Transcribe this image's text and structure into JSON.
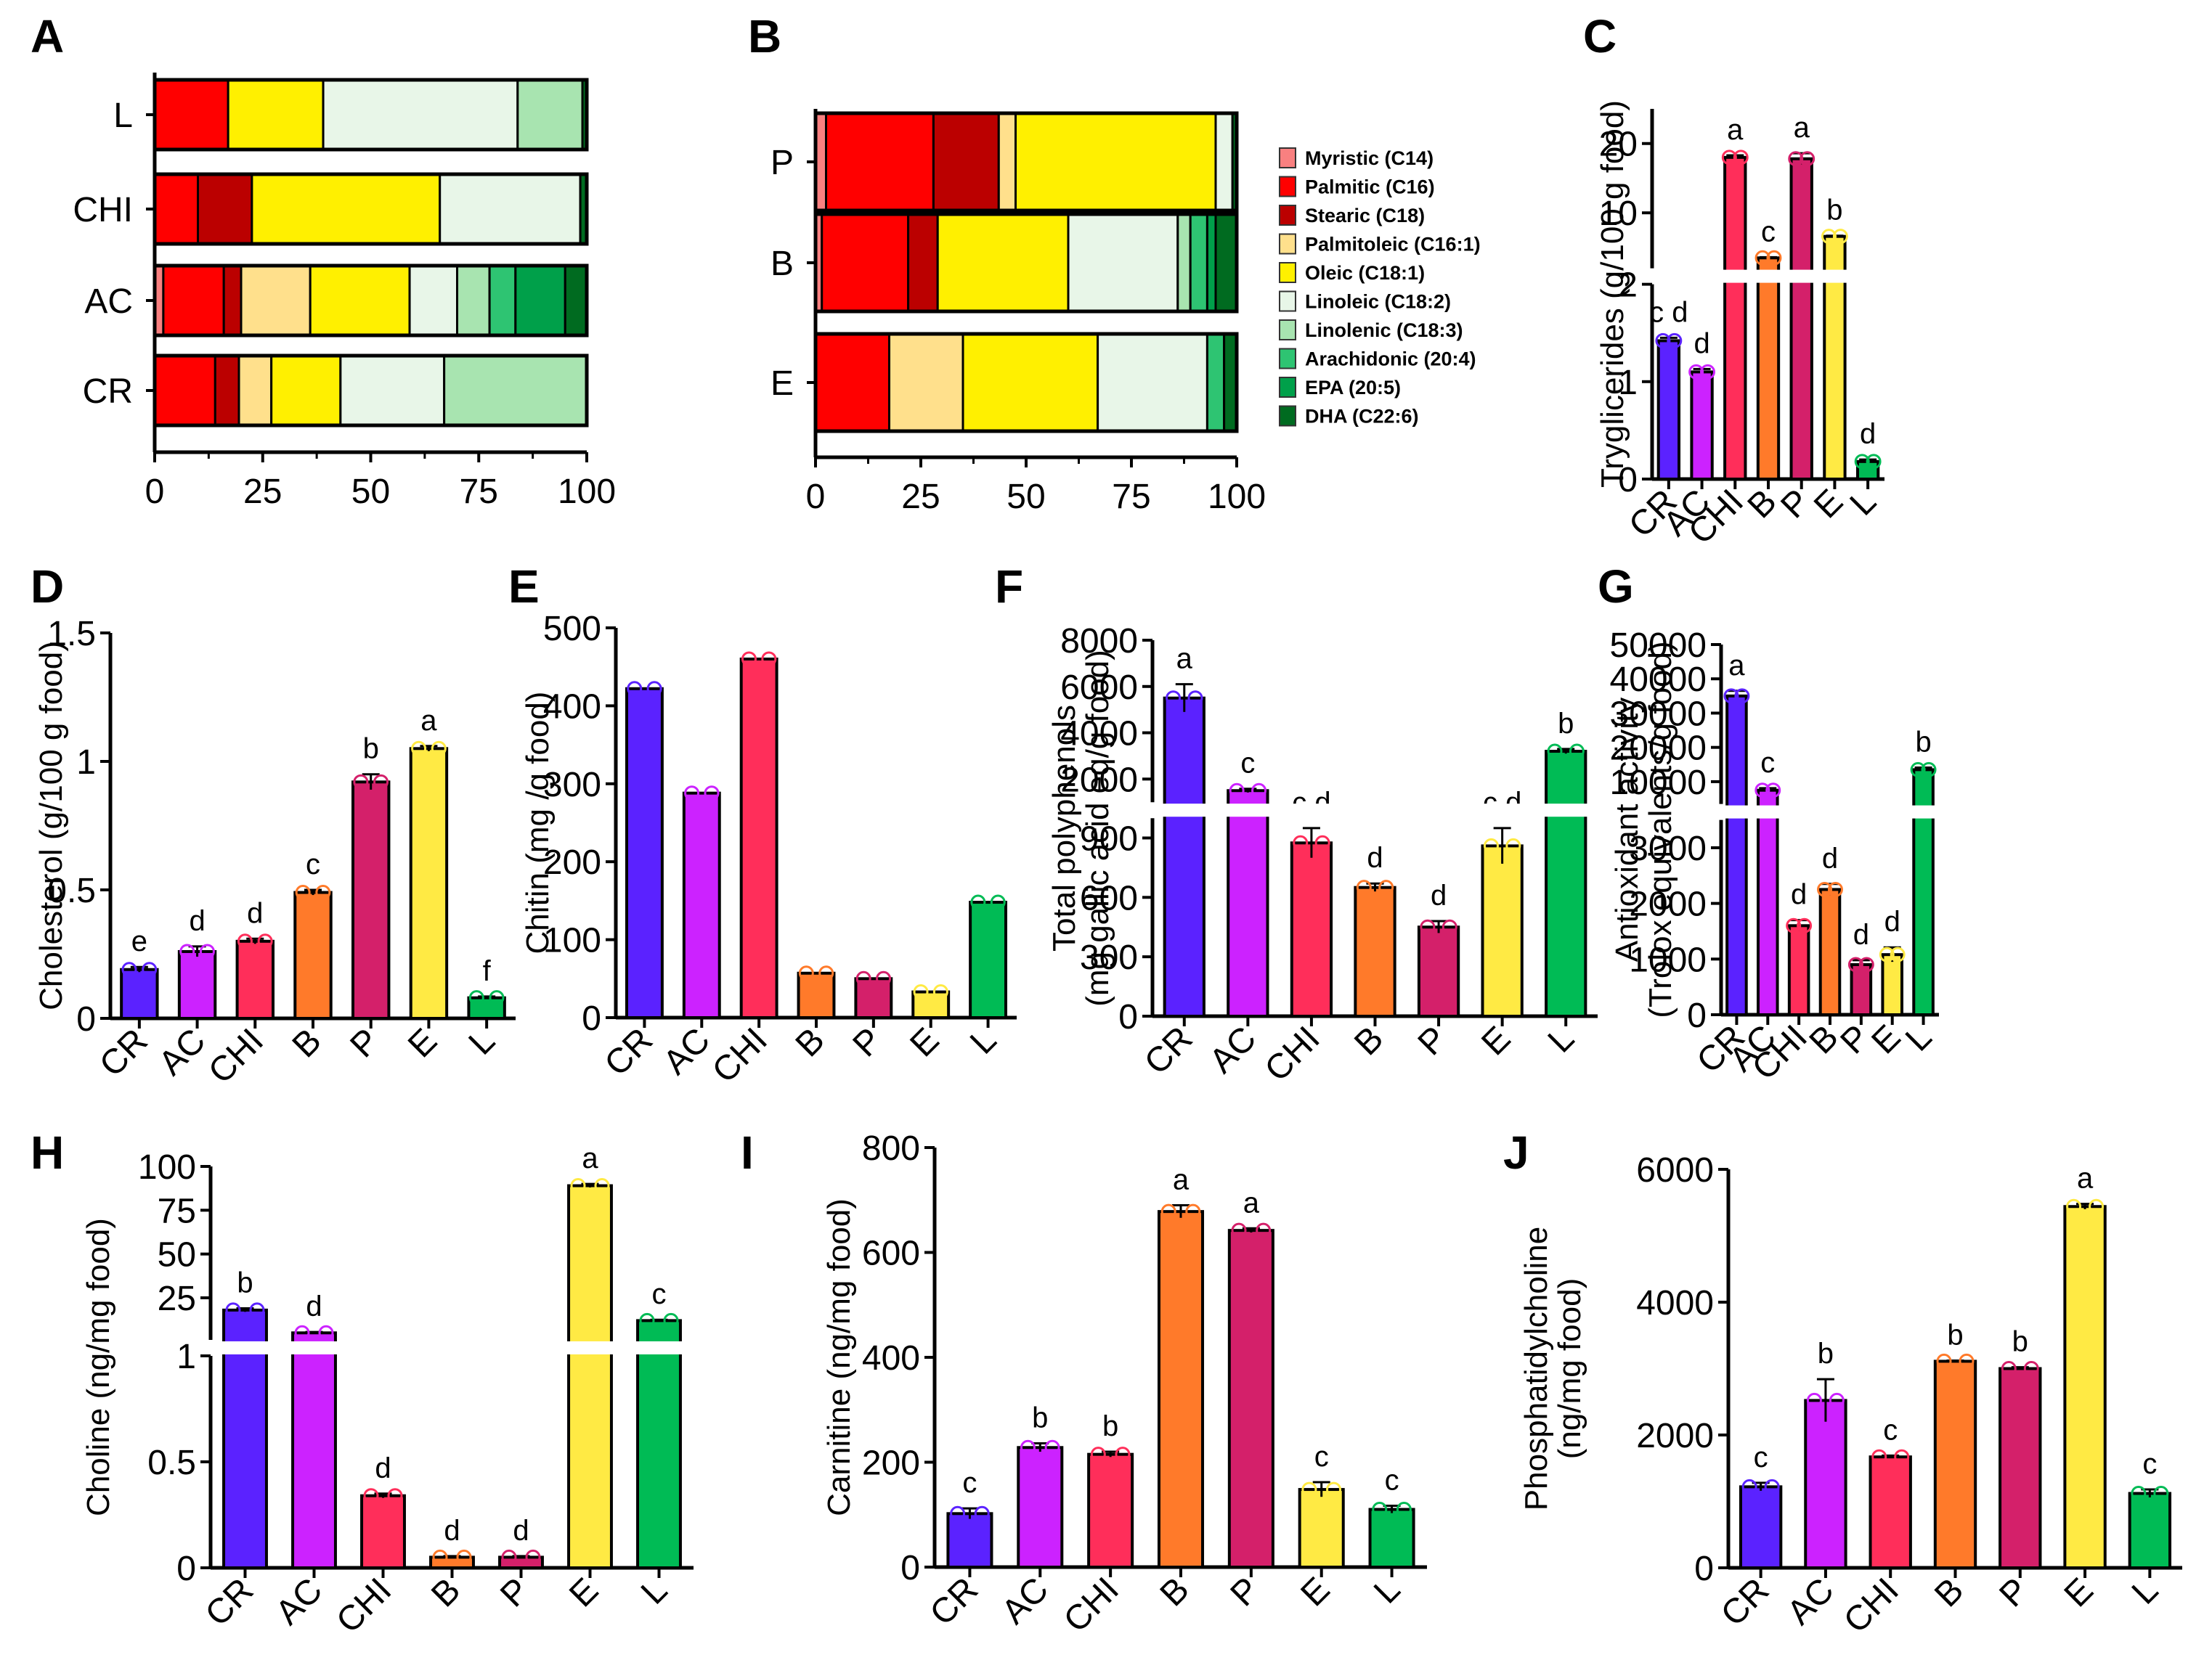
{
  "fatty_acids": [
    {
      "name": "Myristic (C14)",
      "color": "#F98080"
    },
    {
      "name": "Palmitic (C16)",
      "color": "#FF0000"
    },
    {
      "name": "Stearic (C18)",
      "color": "#BB0000"
    },
    {
      "name": "Palmitoleic (C16:1)",
      "color": "#FFE08C"
    },
    {
      "name": "Oleic (C18:1)",
      "color": "#FFF000"
    },
    {
      "name": "Linoleic (C18:2)",
      "color": "#E8F6E8"
    },
    {
      "name": "Linolenic (C18:3)",
      "color": "#A8E4B0"
    },
    {
      "name": "Arachidonic (20:4)",
      "color": "#2EC472"
    },
    {
      "name": "EPA (20:5)",
      "color": "#00A04A"
    },
    {
      "name": "DHA (C22:6)",
      "color": "#006B20"
    }
  ],
  "group_colors": {
    "CR": "#5B22FF",
    "AC": "#CC22FF",
    "CHI": "#FF2E5A",
    "B": "#FF7A2A",
    "P": "#D4206A",
    "E": "#FFEA44",
    "L": "#00BB55"
  },
  "chart_data": [
    {
      "panel": "A",
      "type": "bar",
      "orientation": "horizontal",
      "stacked": true,
      "categories": [
        "L",
        "CHI",
        "AC",
        "CR"
      ],
      "xlim": [
        0,
        100
      ],
      "xticks": [
        0,
        25,
        50,
        75,
        100
      ],
      "series": [
        {
          "name": "Myristic (C14)",
          "values": [
            0,
            0,
            2,
            0
          ]
        },
        {
          "name": "Palmitic (C16)",
          "values": [
            17,
            10,
            14,
            14
          ]
        },
        {
          "name": "Stearic (C18)",
          "values": [
            0,
            12.5,
            4,
            5.5
          ]
        },
        {
          "name": "Palmitoleic (C16:1)",
          "values": [
            0,
            0,
            16,
            7.5
          ]
        },
        {
          "name": "Oleic (C18:1)",
          "values": [
            22,
            43.5,
            23,
            16
          ]
        },
        {
          "name": "Linoleic (C18:2)",
          "values": [
            45,
            32.5,
            11,
            24
          ]
        },
        {
          "name": "Linolenic (C18:3)",
          "values": [
            15,
            0,
            7.5,
            33
          ]
        },
        {
          "name": "Arachidonic (20:4)",
          "values": [
            0,
            0,
            6,
            0
          ]
        },
        {
          "name": "EPA (20:5)",
          "values": [
            0,
            0,
            11.5,
            0
          ]
        },
        {
          "name": "DHA (C22:6)",
          "values": [
            1,
            1.5,
            5,
            0
          ]
        }
      ]
    },
    {
      "panel": "B",
      "type": "bar",
      "orientation": "horizontal",
      "stacked": true,
      "categories": [
        "P",
        "B",
        "E"
      ],
      "xlim": [
        0,
        100
      ],
      "xticks": [
        0,
        25,
        50,
        75,
        100
      ],
      "legend": "right",
      "series": [
        {
          "name": "Myristic (C14)",
          "values": [
            2.5,
            1.5,
            0
          ]
        },
        {
          "name": "Palmitic (C16)",
          "values": [
            25.5,
            20.5,
            17.5
          ]
        },
        {
          "name": "Stearic (C18)",
          "values": [
            15.5,
            7,
            0
          ]
        },
        {
          "name": "Palmitoleic (C16:1)",
          "values": [
            4,
            0,
            17.5
          ]
        },
        {
          "name": "Oleic (C18:1)",
          "values": [
            47.5,
            31,
            32
          ]
        },
        {
          "name": "Linoleic (C18:2)",
          "values": [
            4,
            26,
            26
          ]
        },
        {
          "name": "Linolenic (C18:3)",
          "values": [
            0,
            3,
            0
          ]
        },
        {
          "name": "Arachidonic (20:4)",
          "values": [
            0,
            4,
            4
          ]
        },
        {
          "name": "EPA (20:5)",
          "values": [
            0,
            2,
            0
          ]
        },
        {
          "name": "DHA (C22:6)",
          "values": [
            1,
            5,
            3
          ]
        }
      ]
    },
    {
      "panel": "C",
      "type": "bar",
      "ylabel": "Tryglicerides (g/100 g food)",
      "categories": [
        "CR",
        "AC",
        "CHI",
        "B",
        "P",
        "E",
        "L"
      ],
      "values": [
        1.42,
        1.1,
        18,
        3.5,
        17.8,
        6.6,
        0.18
      ],
      "errors": [
        0.03,
        0.03,
        0.3,
        0.1,
        0.8,
        0.1,
        0.02
      ],
      "sig": [
        "c d",
        "d",
        "a",
        "c",
        "a",
        "b",
        "d"
      ],
      "axis_break": {
        "lower": [
          0,
          2
        ],
        "upper": [
          2,
          25
        ],
        "lower_ticks": [
          0,
          1,
          2
        ],
        "upper_ticks": [
          10,
          20
        ]
      }
    },
    {
      "panel": "D",
      "type": "bar",
      "ylabel": "Cholesterol (g/100 g food)",
      "categories": [
        "CR",
        "AC",
        "CHI",
        "B",
        "P",
        "E",
        "L"
      ],
      "values": [
        0.19,
        0.26,
        0.3,
        0.49,
        0.92,
        1.05,
        0.08
      ],
      "errors": [
        0.01,
        0.02,
        0.01,
        0.01,
        0.03,
        0.01,
        0.005
      ],
      "sig": [
        "e",
        "d",
        "d",
        "c",
        "b",
        "a",
        "f"
      ],
      "ylim": [
        0,
        1.5
      ],
      "yticks": [
        0.0,
        0.5,
        1.0,
        1.5
      ]
    },
    {
      "panel": "E",
      "type": "bar",
      "ylabel": "Chitin (mg /g food)",
      "categories": [
        "CR",
        "AC",
        "CHI",
        "B",
        "P",
        "E",
        "L"
      ],
      "values": [
        422,
        288,
        460,
        57,
        50,
        33,
        148
      ],
      "ylim": [
        0,
        500
      ],
      "yticks": [
        0,
        100,
        200,
        300,
        400,
        500
      ]
    },
    {
      "panel": "F",
      "type": "bar",
      "ylabel": "Total polyphenols\n(mg gallic acid eq/g food)",
      "categories": [
        "CR",
        "AC",
        "CHI",
        "B",
        "P",
        "E",
        "L"
      ],
      "values": [
        5500,
        1500,
        875,
        650,
        450,
        860,
        3200
      ],
      "errors": [
        600,
        80,
        75,
        20,
        30,
        90,
        100
      ],
      "sig": [
        "a",
        "c",
        "c d",
        "d",
        "d",
        "c d",
        "b"
      ],
      "axis_break": {
        "lower": [
          0,
          1000
        ],
        "upper": [
          1000,
          8000
        ],
        "lower_ticks": [
          0,
          300,
          600,
          900
        ],
        "upper_ticks": [
          2000,
          4000,
          6000,
          8000
        ]
      }
    },
    {
      "panel": "G",
      "type": "bar",
      "ylabel": "Antioxidant activity\n(Trolox equivalents/g food)",
      "categories": [
        "CR",
        "AC",
        "CHI",
        "B",
        "P",
        "E",
        "L"
      ],
      "values": [
        35000,
        7500,
        1600,
        2250,
        900,
        1080,
        13500
      ],
      "errors": [
        1500,
        600,
        100,
        100,
        80,
        130,
        600
      ],
      "sig": [
        "a",
        "c",
        "d",
        "d",
        "d",
        "d",
        "b"
      ],
      "axis_break": {
        "lower": [
          0,
          3500
        ],
        "upper": [
          3500,
          50000
        ],
        "lower_ticks": [
          0,
          1000,
          2000,
          3000
        ],
        "upper_ticks": [
          10000,
          20000,
          30000,
          40000,
          50000
        ]
      }
    },
    {
      "panel": "H",
      "type": "bar",
      "ylabel": "Choline (ng/mg food)",
      "categories": [
        "CR",
        "AC",
        "CHI",
        "B",
        "P",
        "E",
        "L"
      ],
      "values": [
        18,
        5,
        0.34,
        0.05,
        0.05,
        89,
        12
      ],
      "errors": [
        1,
        0.5,
        0.01,
        0.005,
        0.005,
        1,
        0.5
      ],
      "sig": [
        "b",
        "d",
        "d",
        "d",
        "d",
        "a",
        "c"
      ],
      "axis_break": {
        "lower": [
          0,
          1.0
        ],
        "upper": [
          1.0,
          100
        ],
        "lower_ticks": [
          0.0,
          0.5,
          1.0
        ],
        "upper_ticks": [
          25,
          50,
          75,
          100
        ]
      }
    },
    {
      "panel": "I",
      "type": "bar",
      "ylabel": "Carnitine (ng/mg food)",
      "categories": [
        "CR",
        "AC",
        "CHI",
        "B",
        "P",
        "E",
        "L"
      ],
      "values": [
        102,
        228,
        215,
        678,
        642,
        148,
        110
      ],
      "errors": [
        10,
        8,
        5,
        12,
        4,
        14,
        7
      ],
      "sig": [
        "c",
        "b",
        "b",
        "a",
        "a",
        "c",
        "c"
      ],
      "ylim": [
        0,
        800
      ],
      "yticks": [
        0,
        200,
        400,
        600,
        800
      ]
    },
    {
      "panel": "J",
      "type": "bar",
      "ylabel": "Phosphatidylcholine\n(ng/mg food)",
      "categories": [
        "CR",
        "AC",
        "CHI",
        "B",
        "P",
        "E",
        "L"
      ],
      "values": [
        1220,
        2520,
        1670,
        3110,
        3000,
        5440,
        1120
      ],
      "errors": [
        60,
        320,
        20,
        10,
        20,
        40,
        60
      ],
      "sig": [
        "c",
        "b",
        "c",
        "b",
        "b",
        "a",
        "c"
      ],
      "ylim": [
        0,
        6000
      ],
      "yticks": [
        0,
        2000,
        4000,
        6000
      ]
    }
  ]
}
